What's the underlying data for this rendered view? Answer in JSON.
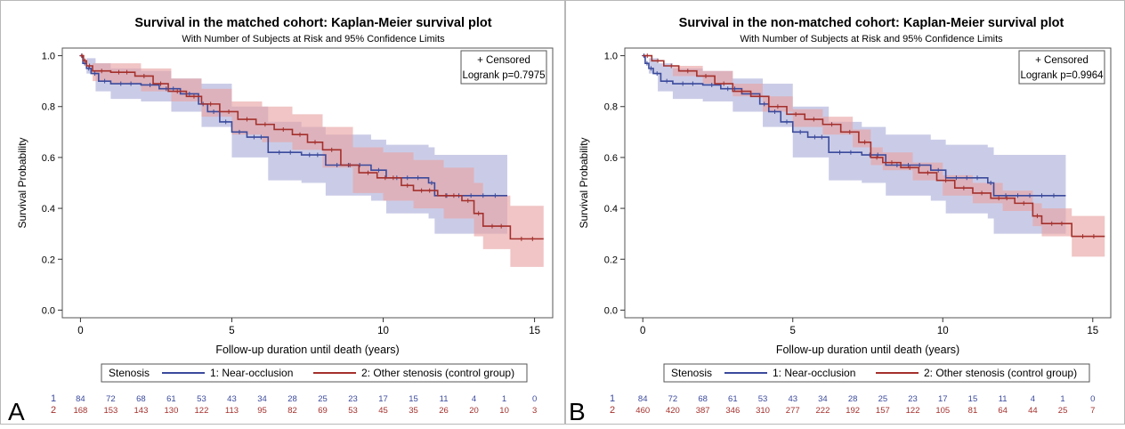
{
  "colors": {
    "near": "#3b4a9c",
    "other": "#a4302c",
    "near_band": "#a9acd8",
    "other_band": "#e8a2a2",
    "panel_letter": "#000000"
  },
  "chart_data": [
    {
      "type": "line",
      "panel_letter": "A",
      "title": "Survival in the matched cohort: Kaplan-Meier survival plot",
      "subtitle": "With Number of Subjects at Risk and 95% Confidence Limits",
      "xlabel": "Follow-up duration until death (years)",
      "ylabel": "Survival Probability",
      "xlim": [
        -0.6,
        15.6
      ],
      "ylim": [
        -0.03,
        1.03
      ],
      "xticks": [
        "0",
        "5",
        "10",
        "15"
      ],
      "yticks": [
        "0.0",
        "0.2",
        "0.4",
        "0.6",
        "0.8",
        "1.0"
      ],
      "inset": {
        "line1": "+ Censored",
        "line2": "Logrank p=0.7975"
      },
      "legend": {
        "title": "Stenosis",
        "placement": "bottom"
      },
      "series": [
        {
          "name": "1: Near-occlusion",
          "key": "near",
          "steps": [
            [
              0,
              1.0
            ],
            [
              0.08,
              0.97
            ],
            [
              0.2,
              0.95
            ],
            [
              0.35,
              0.93
            ],
            [
              0.6,
              0.9
            ],
            [
              1,
              0.89
            ],
            [
              2,
              0.885
            ],
            [
              2.6,
              0.87
            ],
            [
              3.3,
              0.85
            ],
            [
              3.9,
              0.81
            ],
            [
              4.2,
              0.78
            ],
            [
              4.6,
              0.74
            ],
            [
              5,
              0.7
            ],
            [
              5.5,
              0.68
            ],
            [
              6.2,
              0.62
            ],
            [
              7.3,
              0.61
            ],
            [
              8.1,
              0.57
            ],
            [
              9.6,
              0.55
            ],
            [
              10.1,
              0.52
            ],
            [
              11.5,
              0.5
            ],
            [
              11.7,
              0.45
            ],
            [
              14.1,
              0.45
            ]
          ],
          "band": [
            [
              0,
              1.0,
              1.0
            ],
            [
              0.2,
              0.93,
              0.99
            ],
            [
              0.5,
              0.86,
              0.97
            ],
            [
              1,
              0.83,
              0.95
            ],
            [
              2,
              0.82,
              0.94
            ],
            [
              3,
              0.78,
              0.91
            ],
            [
              4,
              0.72,
              0.89
            ],
            [
              5,
              0.6,
              0.8
            ],
            [
              6.2,
              0.51,
              0.74
            ],
            [
              7.3,
              0.5,
              0.72
            ],
            [
              8.1,
              0.45,
              0.69
            ],
            [
              9.6,
              0.43,
              0.67
            ],
            [
              10.1,
              0.38,
              0.65
            ],
            [
              11.5,
              0.36,
              0.64
            ],
            [
              11.7,
              0.3,
              0.61
            ],
            [
              14.1,
              0.3,
              0.61
            ]
          ]
        },
        {
          "name": "2: Other stenosis (control group)",
          "key": "other",
          "steps": [
            [
              0,
              1.0
            ],
            [
              0.1,
              0.98
            ],
            [
              0.2,
              0.96
            ],
            [
              0.4,
              0.94
            ],
            [
              1,
              0.935
            ],
            [
              1.8,
              0.92
            ],
            [
              2.4,
              0.89
            ],
            [
              2.9,
              0.86
            ],
            [
              3.5,
              0.84
            ],
            [
              4,
              0.81
            ],
            [
              4.6,
              0.78
            ],
            [
              5.2,
              0.75
            ],
            [
              5.8,
              0.73
            ],
            [
              6.4,
              0.71
            ],
            [
              7,
              0.69
            ],
            [
              7.5,
              0.66
            ],
            [
              8,
              0.63
            ],
            [
              8.6,
              0.57
            ],
            [
              9.2,
              0.54
            ],
            [
              9.8,
              0.52
            ],
            [
              10.6,
              0.49
            ],
            [
              11,
              0.47
            ],
            [
              11.8,
              0.45
            ],
            [
              12.6,
              0.43
            ],
            [
              13,
              0.38
            ],
            [
              13.3,
              0.33
            ],
            [
              14.2,
              0.28
            ],
            [
              15.3,
              0.28
            ]
          ],
          "band": [
            [
              0,
              1.0,
              1.0
            ],
            [
              0.4,
              0.9,
              0.97
            ],
            [
              1,
              0.89,
              0.97
            ],
            [
              2,
              0.86,
              0.95
            ],
            [
              3,
              0.82,
              0.91
            ],
            [
              4,
              0.76,
              0.87
            ],
            [
              5,
              0.69,
              0.82
            ],
            [
              6,
              0.66,
              0.8
            ],
            [
              7,
              0.63,
              0.77
            ],
            [
              8,
              0.56,
              0.72
            ],
            [
              9,
              0.46,
              0.64
            ],
            [
              10,
              0.43,
              0.62
            ],
            [
              11,
              0.4,
              0.59
            ],
            [
              12,
              0.36,
              0.56
            ],
            [
              13,
              0.29,
              0.5
            ],
            [
              13.3,
              0.24,
              0.45
            ],
            [
              14.2,
              0.17,
              0.41
            ],
            [
              15.3,
              0.17,
              0.41
            ]
          ]
        }
      ],
      "at_risk": {
        "x": [
          0,
          1,
          2,
          3,
          4,
          5,
          6,
          7,
          8,
          9,
          10,
          11,
          12,
          13,
          14,
          15
        ],
        "near": [
          "84",
          "72",
          "68",
          "61",
          "53",
          "43",
          "34",
          "28",
          "25",
          "23",
          "17",
          "15",
          "11",
          "4",
          "1",
          "0"
        ],
        "other": [
          "168",
          "153",
          "143",
          "130",
          "122",
          "113",
          "95",
          "82",
          "69",
          "53",
          "45",
          "35",
          "26",
          "20",
          "10",
          "3"
        ]
      }
    },
    {
      "type": "line",
      "panel_letter": "B",
      "title": "Survival in the non-matched cohort: Kaplan-Meier survival plot",
      "subtitle": "With Number of Subjects at Risk and 95% Confidence Limits",
      "xlabel": "Follow-up duration until death (years)",
      "ylabel": "Survival Probability",
      "xlim": [
        -0.6,
        15.6
      ],
      "ylim": [
        -0.03,
        1.03
      ],
      "xticks": [
        "0",
        "5",
        "10",
        "15"
      ],
      "yticks": [
        "0.0",
        "0.2",
        "0.4",
        "0.6",
        "0.8",
        "1.0"
      ],
      "inset": {
        "line1": "+ Censored",
        "line2": "Logrank p=0.9964"
      },
      "legend": {
        "title": "Stenosis",
        "placement": "bottom"
      },
      "series": [
        {
          "name": "1: Near-occlusion",
          "key": "near",
          "steps": [
            [
              0,
              1.0
            ],
            [
              0.08,
              0.97
            ],
            [
              0.2,
              0.95
            ],
            [
              0.35,
              0.93
            ],
            [
              0.6,
              0.9
            ],
            [
              1,
              0.89
            ],
            [
              2,
              0.885
            ],
            [
              2.6,
              0.87
            ],
            [
              3.3,
              0.85
            ],
            [
              3.9,
              0.81
            ],
            [
              4.2,
              0.78
            ],
            [
              4.6,
              0.74
            ],
            [
              5,
              0.7
            ],
            [
              5.5,
              0.68
            ],
            [
              6.2,
              0.62
            ],
            [
              7.3,
              0.61
            ],
            [
              8.1,
              0.57
            ],
            [
              9.6,
              0.55
            ],
            [
              10.1,
              0.52
            ],
            [
              11.5,
              0.5
            ],
            [
              11.7,
              0.45
            ],
            [
              14.1,
              0.45
            ]
          ],
          "band": [
            [
              0,
              1.0,
              1.0
            ],
            [
              0.2,
              0.93,
              0.99
            ],
            [
              0.5,
              0.86,
              0.97
            ],
            [
              1,
              0.83,
              0.95
            ],
            [
              2,
              0.82,
              0.94
            ],
            [
              3,
              0.78,
              0.91
            ],
            [
              4,
              0.72,
              0.89
            ],
            [
              5,
              0.6,
              0.8
            ],
            [
              6.2,
              0.51,
              0.74
            ],
            [
              7.3,
              0.5,
              0.72
            ],
            [
              8.1,
              0.45,
              0.69
            ],
            [
              9.6,
              0.43,
              0.67
            ],
            [
              10.1,
              0.38,
              0.65
            ],
            [
              11.5,
              0.36,
              0.64
            ],
            [
              11.7,
              0.3,
              0.61
            ],
            [
              14.1,
              0.3,
              0.61
            ]
          ]
        },
        {
          "name": "2: Other stenosis (control group)",
          "key": "other",
          "steps": [
            [
              0,
              1.0
            ],
            [
              0.3,
              0.98
            ],
            [
              0.7,
              0.96
            ],
            [
              1.2,
              0.94
            ],
            [
              1.8,
              0.92
            ],
            [
              2.4,
              0.89
            ],
            [
              3,
              0.86
            ],
            [
              3.6,
              0.84
            ],
            [
              4.2,
              0.8
            ],
            [
              4.8,
              0.77
            ],
            [
              5.4,
              0.75
            ],
            [
              6,
              0.73
            ],
            [
              6.6,
              0.7
            ],
            [
              7.2,
              0.66
            ],
            [
              7.6,
              0.6
            ],
            [
              8,
              0.58
            ],
            [
              8.6,
              0.56
            ],
            [
              9.2,
              0.54
            ],
            [
              9.8,
              0.51
            ],
            [
              10.4,
              0.48
            ],
            [
              11,
              0.46
            ],
            [
              11.6,
              0.44
            ],
            [
              12.4,
              0.42
            ],
            [
              13,
              0.37
            ],
            [
              13.3,
              0.34
            ],
            [
              14.3,
              0.29
            ],
            [
              15.4,
              0.29
            ]
          ],
          "band": [
            [
              0,
              1.0,
              1.0
            ],
            [
              1,
              0.92,
              0.96
            ],
            [
              2,
              0.89,
              0.94
            ],
            [
              3,
              0.84,
              0.89
            ],
            [
              4,
              0.78,
              0.84
            ],
            [
              5,
              0.72,
              0.79
            ],
            [
              6,
              0.69,
              0.76
            ],
            [
              7,
              0.64,
              0.71
            ],
            [
              7.6,
              0.57,
              0.64
            ],
            [
              8,
              0.55,
              0.62
            ],
            [
              9,
              0.51,
              0.58
            ],
            [
              10,
              0.45,
              0.53
            ],
            [
              11,
              0.42,
              0.5
            ],
            [
              12,
              0.39,
              0.47
            ],
            [
              13,
              0.33,
              0.42
            ],
            [
              13.3,
              0.29,
              0.4
            ],
            [
              14.3,
              0.21,
              0.37
            ],
            [
              15.4,
              0.21,
              0.37
            ]
          ]
        }
      ],
      "at_risk": {
        "x": [
          0,
          1,
          2,
          3,
          4,
          5,
          6,
          7,
          8,
          9,
          10,
          11,
          12,
          13,
          14,
          15
        ],
        "near": [
          "84",
          "72",
          "68",
          "61",
          "53",
          "43",
          "34",
          "28",
          "25",
          "23",
          "17",
          "15",
          "11",
          "4",
          "1",
          "0"
        ],
        "other": [
          "460",
          "420",
          "387",
          "346",
          "310",
          "277",
          "222",
          "192",
          "157",
          "122",
          "105",
          "81",
          "64",
          "44",
          "25",
          "7"
        ]
      }
    }
  ]
}
